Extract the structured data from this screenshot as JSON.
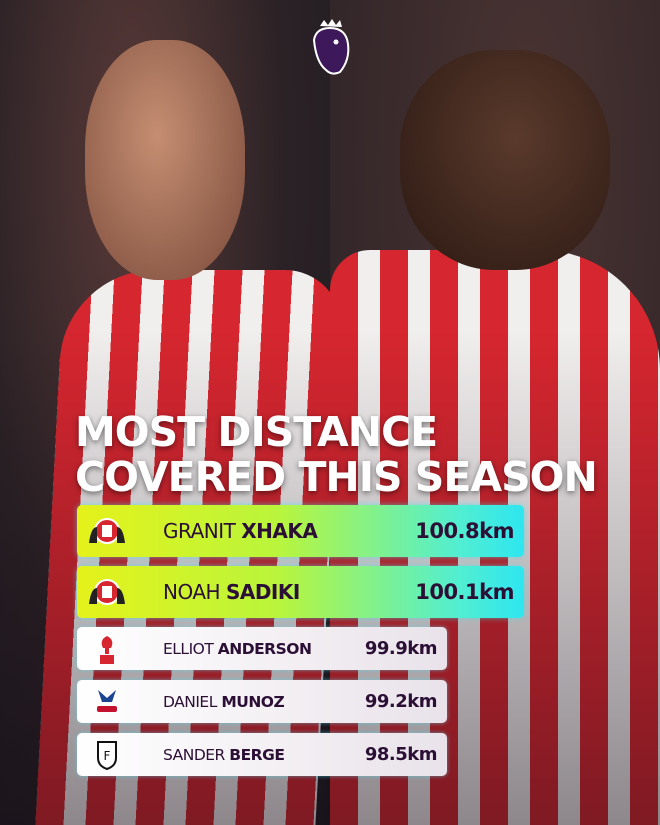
{
  "title": {
    "line1": "MOST DISTANCE",
    "line2": "COVERED THIS SEASON"
  },
  "colors": {
    "highlight_start": "#e5f21a",
    "highlight_end": "#2ee6f0",
    "text": "#2b0f35"
  },
  "rows": [
    {
      "first": "GRANIT",
      "last": "XHAKA",
      "value": "100.8km",
      "club_icon": "sunderland-crest-icon"
    },
    {
      "first": "NOAH",
      "last": "SADIKI",
      "value": "100.1km",
      "club_icon": "sunderland-crest-icon"
    },
    {
      "first": "ELLIOT",
      "last": "ANDERSON",
      "value": "99.9km",
      "club_icon": "nottingham-forest-crest-icon"
    },
    {
      "first": "DANIEL",
      "last": "MUNOZ",
      "value": "99.2km",
      "club_icon": "crystal-palace-crest-icon"
    },
    {
      "first": "SANDER",
      "last": "BERGE",
      "value": "98.5km",
      "club_icon": "fulham-crest-icon"
    }
  ]
}
